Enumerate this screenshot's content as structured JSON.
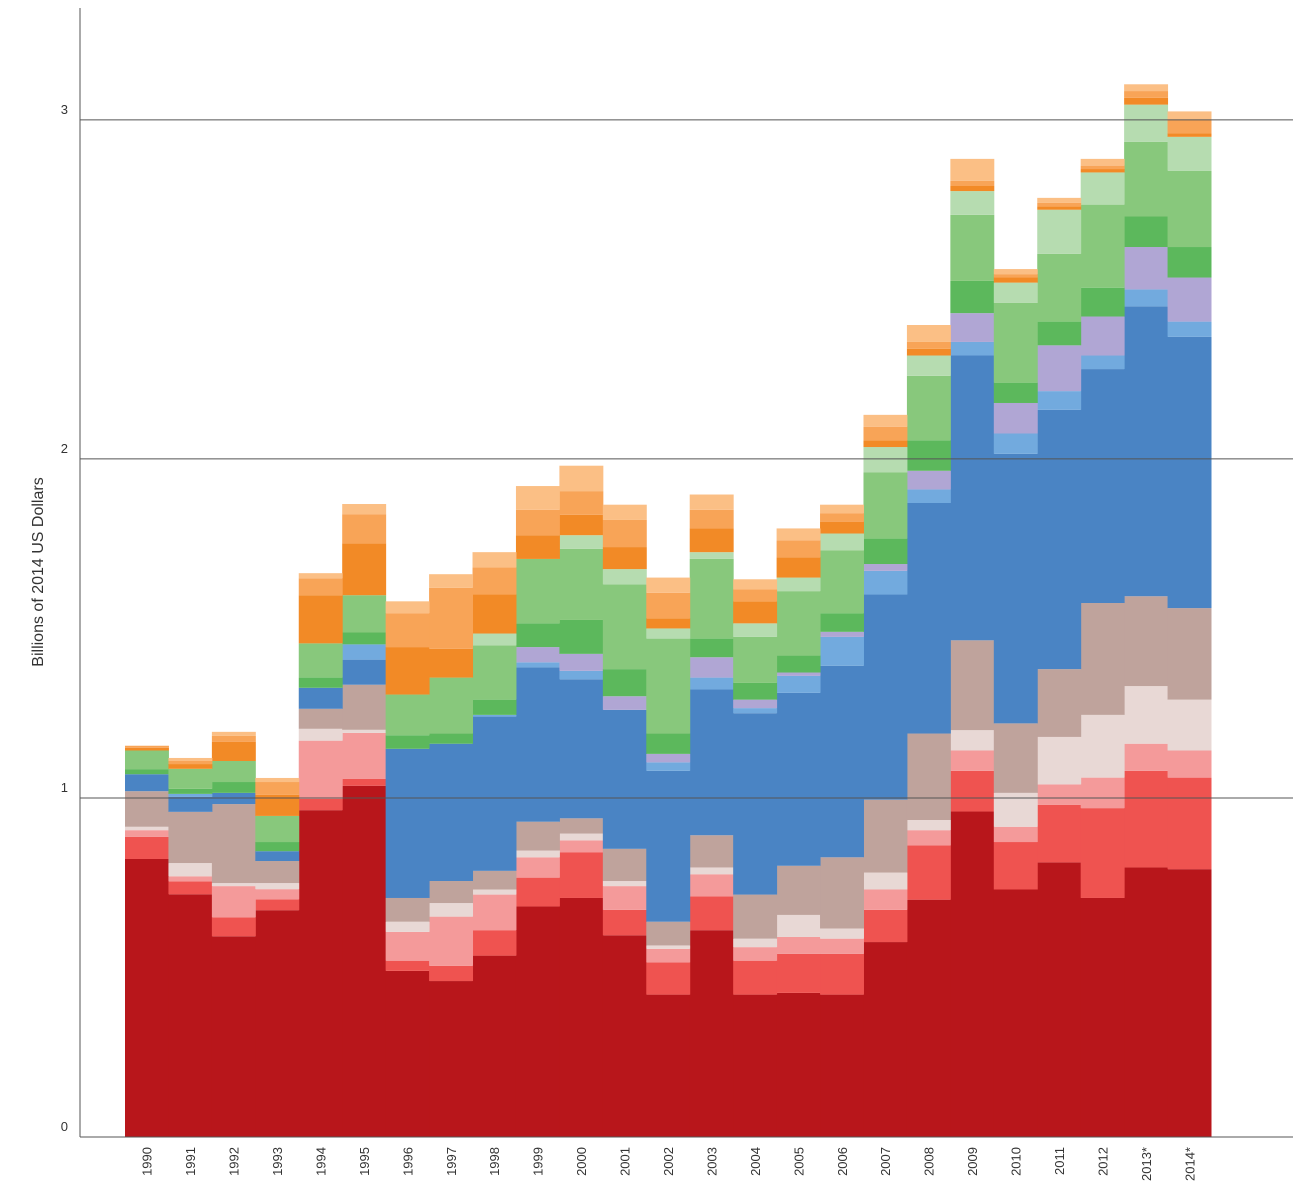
{
  "chart_data": {
    "type": "stacked_step_area",
    "y_label": "Billions of 2014 US Dollars",
    "categories": [
      "1990",
      "1991",
      "1992",
      "1993",
      "1994",
      "1995",
      "1996",
      "1997",
      "1998",
      "1999",
      "2000",
      "2001",
      "2002",
      "2003",
      "2004",
      "2005",
      "2006",
      "2007",
      "2008",
      "2009",
      "2010",
      "2011",
      "2012",
      "2013*",
      "2014*"
    ],
    "ylim": [
      0,
      3.33
    ],
    "yticks": [
      0,
      1,
      2,
      3
    ],
    "grid": true,
    "series": [
      {
        "color": "#b8161b",
        "values": [
          0.82,
          0.716,
          0.592,
          0.669,
          0.964,
          1.036,
          0.49,
          0.46,
          0.535,
          0.68,
          0.705,
          0.595,
          0.42,
          0.61,
          0.42,
          0.425,
          0.42,
          0.575,
          0.7,
          0.96,
          0.73,
          0.81,
          0.705,
          0.795,
          0.79
        ]
      },
      {
        "color": "#ef5350",
        "values": [
          0.065,
          0.038,
          0.056,
          0.032,
          0.033,
          0.02,
          0.03,
          0.045,
          0.075,
          0.085,
          0.135,
          0.075,
          0.095,
          0.1,
          0.1,
          0.115,
          0.12,
          0.095,
          0.16,
          0.12,
          0.14,
          0.17,
          0.265,
          0.285,
          0.27
        ]
      },
      {
        "color": "#f49a9a",
        "values": [
          0.02,
          0.015,
          0.092,
          0.03,
          0.172,
          0.136,
          0.085,
          0.145,
          0.105,
          0.06,
          0.035,
          0.07,
          0.04,
          0.065,
          0.04,
          0.05,
          0.045,
          0.06,
          0.045,
          0.06,
          0.045,
          0.06,
          0.09,
          0.08,
          0.08
        ]
      },
      {
        "color": "#e8d8d5",
        "values": [
          0.01,
          0.039,
          0.009,
          0.018,
          0.035,
          0.009,
          0.03,
          0.04,
          0.015,
          0.02,
          0.02,
          0.015,
          0.01,
          0.02,
          0.025,
          0.065,
          0.03,
          0.05,
          0.03,
          0.06,
          0.1,
          0.14,
          0.185,
          0.17,
          0.15
        ]
      },
      {
        "color": "#bfa39c",
        "values": [
          0.105,
          0.151,
          0.233,
          0.065,
          0.059,
          0.133,
          0.07,
          0.065,
          0.055,
          0.085,
          0.045,
          0.095,
          0.07,
          0.095,
          0.13,
          0.145,
          0.21,
          0.215,
          0.255,
          0.265,
          0.205,
          0.2,
          0.33,
          0.265,
          0.27
        ]
      },
      {
        "color": "#4a84c4",
        "values": [
          0.05,
          0.044,
          0.033,
          0.029,
          0.062,
          0.074,
          0.44,
          0.405,
          0.455,
          0.455,
          0.41,
          0.41,
          0.445,
          0.43,
          0.535,
          0.51,
          0.565,
          0.605,
          0.68,
          0.84,
          0.795,
          0.765,
          0.69,
          0.855,
          0.8
        ]
      },
      {
        "color": "#72aade",
        "values": [
          0,
          0.009,
          0,
          0,
          0,
          0.045,
          0,
          0,
          0.005,
          0.015,
          0.025,
          0,
          0.025,
          0.035,
          0.015,
          0.05,
          0.085,
          0.07,
          0.04,
          0.04,
          0.06,
          0.055,
          0.04,
          0.05,
          0.045
        ]
      },
      {
        "color": "#b0a6d4",
        "values": [
          0,
          0,
          0,
          0,
          0,
          0,
          0,
          0,
          0,
          0.045,
          0.05,
          0.04,
          0.025,
          0.06,
          0.025,
          0.01,
          0.015,
          0.02,
          0.055,
          0.085,
          0.09,
          0.135,
          0.115,
          0.125,
          0.13
        ]
      },
      {
        "color": "#5cb85c",
        "values": [
          0.015,
          0.015,
          0.032,
          0.027,
          0.03,
          0.035,
          0.04,
          0.03,
          0.045,
          0.07,
          0.1,
          0.08,
          0.06,
          0.055,
          0.05,
          0.05,
          0.055,
          0.075,
          0.09,
          0.095,
          0.06,
          0.07,
          0.085,
          0.09,
          0.09
        ]
      },
      {
        "color": "#88c87c",
        "values": [
          0.055,
          0.059,
          0.062,
          0.077,
          0.101,
          0.11,
          0.12,
          0.165,
          0.16,
          0.19,
          0.21,
          0.25,
          0.28,
          0.235,
          0.135,
          0.19,
          0.185,
          0.195,
          0.19,
          0.195,
          0.235,
          0.2,
          0.245,
          0.22,
          0.225
        ]
      },
      {
        "color": "#b6dcb0",
        "values": [
          0,
          0,
          0,
          0,
          0,
          0,
          0,
          0,
          0.035,
          0,
          0.04,
          0.045,
          0.03,
          0.02,
          0.04,
          0.04,
          0.05,
          0.075,
          0.06,
          0.07,
          0.06,
          0.13,
          0.095,
          0.11,
          0.1
        ]
      },
      {
        "color": "#f28a26",
        "values": [
          0.008,
          0.014,
          0.057,
          0.062,
          0.142,
          0.153,
          0.14,
          0.085,
          0.115,
          0.07,
          0.06,
          0.065,
          0.03,
          0.07,
          0.065,
          0.06,
          0.035,
          0.02,
          0.02,
          0.015,
          0.015,
          0.01,
          0.01,
          0.02,
          0.01
        ]
      },
      {
        "color": "#f8a457",
        "values": [
          0.006,
          0.009,
          0.017,
          0.038,
          0.05,
          0.086,
          0.1,
          0.18,
          0.08,
          0.075,
          0.07,
          0.08,
          0.075,
          0.055,
          0.035,
          0.05,
          0.025,
          0.04,
          0.02,
          0.015,
          0.01,
          0.01,
          0.01,
          0.02,
          0.04
        ]
      },
      {
        "color": "#fbbf85",
        "values": [
          0,
          0.009,
          0.012,
          0.012,
          0.015,
          0.03,
          0.035,
          0.04,
          0.045,
          0.07,
          0.075,
          0.045,
          0.045,
          0.045,
          0.03,
          0.035,
          0.025,
          0.035,
          0.05,
          0.065,
          0.015,
          0.015,
          0.02,
          0.02,
          0.025
        ]
      }
    ]
  }
}
